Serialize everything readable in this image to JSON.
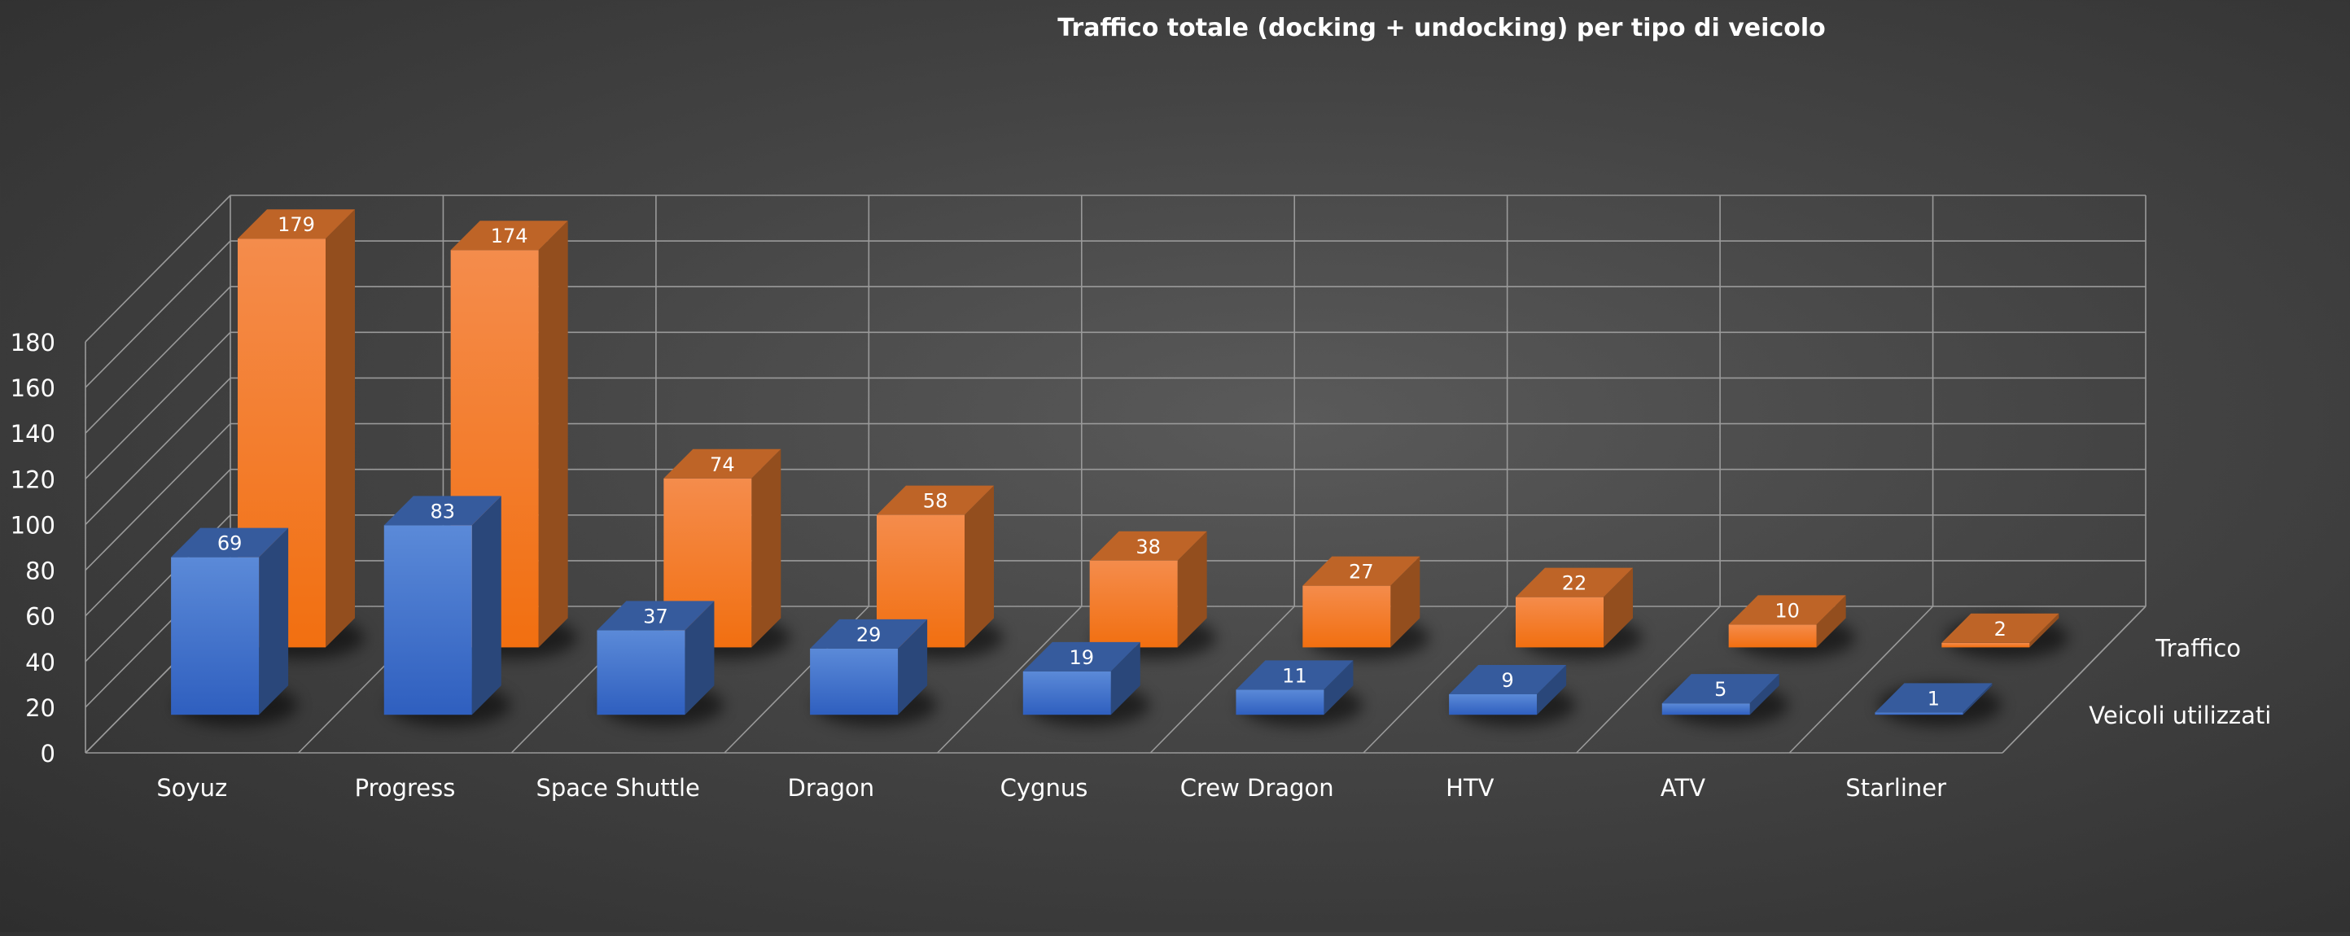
{
  "chart_data": {
    "type": "bar",
    "title": "Traffico totale (docking + undocking) per tipo di veicolo",
    "xlabel": "",
    "ylabel": "",
    "ylim": [
      0,
      180
    ],
    "yticks": [
      0,
      20,
      40,
      60,
      80,
      100,
      120,
      140,
      160,
      180
    ],
    "grid": true,
    "legend": "none",
    "categories": [
      "Soyuz",
      "Progress",
      "Space Shuttle",
      "Dragon",
      "Cygnus",
      "Crew Dragon",
      "HTV",
      "ATV",
      "Starliner"
    ],
    "series": [
      {
        "name": "Veicoli utilizzati",
        "color": "#4472C4",
        "values": [
          69,
          83,
          37,
          29,
          19,
          11,
          9,
          5,
          1
        ]
      },
      {
        "name": "Traffico",
        "color": "#ED7D31",
        "values": [
          179,
          174,
          74,
          58,
          38,
          27,
          22,
          10,
          2
        ]
      }
    ]
  }
}
